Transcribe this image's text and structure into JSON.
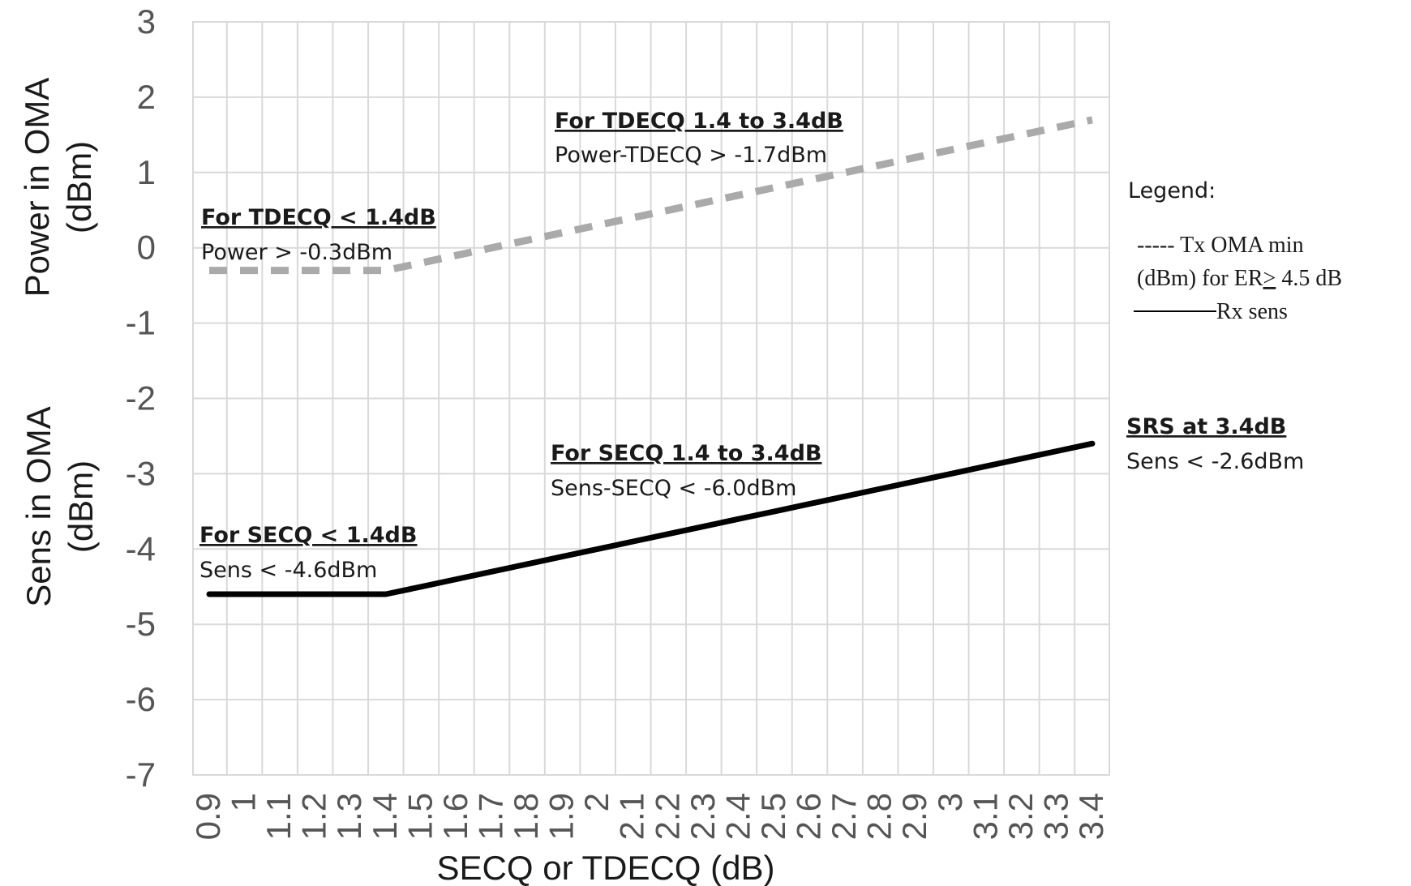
{
  "chart_data": {
    "type": "line",
    "x": [
      0.9,
      1,
      1.1,
      1.2,
      1.3,
      1.4,
      1.5,
      1.6,
      1.7,
      1.8,
      1.9,
      2,
      2.1,
      2.2,
      2.3,
      2.4,
      2.5,
      2.6,
      2.7,
      2.8,
      2.9,
      3,
      3.1,
      3.2,
      3.3,
      3.4
    ],
    "x_tick_labels": [
      "0.9",
      "1",
      "1.1",
      "1.2",
      "1.3",
      "1.4",
      "1.5",
      "1.6",
      "1.7",
      "1.8",
      "1.9",
      "2",
      "2.1",
      "2.2",
      "2.3",
      "2.4",
      "2.5",
      "2.6",
      "2.7",
      "2.8",
      "2.9",
      "3",
      "3.1",
      "3.2",
      "3.3",
      "3.4"
    ],
    "y_ticks": [
      "3",
      "2",
      "1",
      "0",
      "-1",
      "-2",
      "-3",
      "-4",
      "-5",
      "-6",
      "-7"
    ],
    "ylim": [
      -7,
      3
    ],
    "xlabel": "SECQ or TDECQ (dB)",
    "ylabel_top": [
      "Power  in OMA",
      "(dBm)"
    ],
    "ylabel_bottom": [
      "Sens in OMA",
      "(dBm)"
    ],
    "grid": true,
    "series": [
      {
        "style": "dashed",
        "color": "#aaaaaa",
        "values": [
          -0.3,
          -0.3,
          -0.3,
          -0.3,
          -0.3,
          -0.3,
          -0.2,
          -0.1,
          0.0,
          0.1,
          0.2,
          0.3,
          0.4,
          0.5,
          0.6,
          0.7,
          0.8,
          0.9,
          1.0,
          1.1,
          1.2,
          1.3,
          1.4,
          1.5,
          1.6,
          1.7
        ]
      },
      {
        "style": "solid",
        "color": "#000000",
        "values": [
          -4.6,
          -4.6,
          -4.6,
          -4.6,
          -4.6,
          -4.6,
          -4.5,
          -4.4,
          -4.3,
          -4.2,
          -4.1,
          -4.0,
          -3.9,
          -3.8,
          -3.7,
          -3.6,
          -3.5,
          -3.4,
          -3.3,
          -3.2,
          -3.1,
          -3.0,
          -2.9,
          -2.8,
          -2.7,
          -2.6
        ]
      }
    ],
    "annotations": [
      {
        "heading": "For TDECQ 1.4 to 3.4dB",
        "text": "Power-TDECQ > -1.7dBm"
      },
      {
        "heading": "For TDECQ < 1.4dB",
        "text": "Power > -0.3dBm"
      },
      {
        "heading": "For SECQ 1.4 to 3.4dB",
        "text": "Sens-SECQ < -6.0dBm"
      },
      {
        "heading": "For SECQ < 1.4dB",
        "text": "Sens < -4.6dBm"
      },
      {
        "heading": "SRS at 3.4dB",
        "text": "Sens < -2.6dBm"
      }
    ],
    "legend": {
      "title": "Legend:",
      "line1": "----- Tx OMA min",
      "line2_a": "(dBm)  for ER",
      "line2_b": ">",
      "line2_c": " 4.5 dB",
      "line3": "Rx sens"
    }
  }
}
